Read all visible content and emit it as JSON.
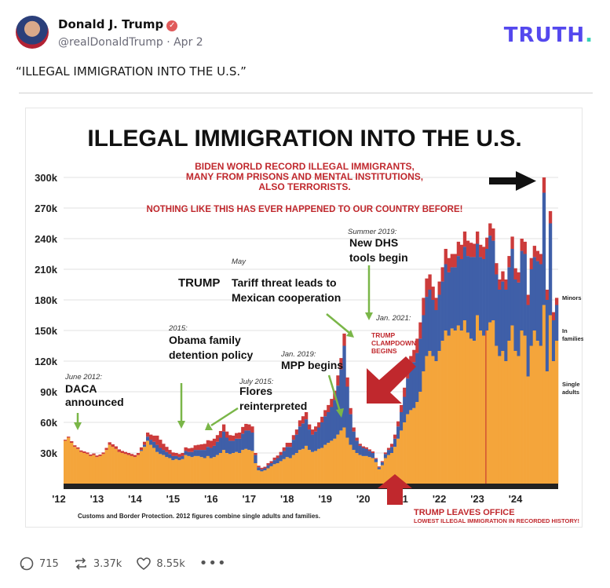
{
  "post": {
    "author_name": "Donald J. Trump",
    "handle_date": "@realDonaldTrump · Apr 2",
    "brand": "TRUTH",
    "text": "“ILLEGAL IMMIGRATION INTO THE U.S.”"
  },
  "actions": {
    "replies": "715",
    "retruths": "3.37k",
    "likes": "8.55k"
  },
  "colors": {
    "single_adults": "#f4a53b",
    "families": "#3f5fa8",
    "minors": "#cc3b3b",
    "annotation_red": "#c0282d",
    "arrow_green": "#7ab648",
    "brand": "#5448ee"
  },
  "chart_data": {
    "type": "bar",
    "stacked": true,
    "title": "ILLEGAL IMMIGRATION INTO THE U.S.",
    "subtitle_lines": [
      "BIDEN WORLD RECORD ILLEGAL IMMIGRANTS,",
      "MANY FROM PRISONS AND MENTAL INSTITUTIONS,",
      "ALSO TERRORISTS."
    ],
    "subtitle2": "NOTHING LIKE THIS HAS EVER HAPPENED TO OUR COUNTRY BEFORE!",
    "ylim": [
      0,
      300000
    ],
    "y_ticks": [
      "30k",
      "60k",
      "90k",
      "120k",
      "150k",
      "180k",
      "210k",
      "240k",
      "270k",
      "300k"
    ],
    "y_tick_values": [
      30000,
      60000,
      90000,
      120000,
      150000,
      180000,
      210000,
      240000,
      270000,
      300000
    ],
    "x_tick_labels": [
      "'12",
      "'13",
      "'14",
      "'15",
      "'16",
      "'17",
      "'18",
      "'19",
      "'20",
      "'21",
      "'22",
      "'23",
      "'24"
    ],
    "legend": [
      "Minors",
      "In families",
      "Single adults"
    ],
    "source_note": "Customs and Border Protection. 2012 figures combine single adults and families.",
    "series_start": "2012-01",
    "series": [
      {
        "name": "Single adults",
        "values": [
          42000,
          45000,
          40000,
          36000,
          34000,
          31000,
          30000,
          29000,
          27000,
          28000,
          26000,
          27000,
          29000,
          33000,
          38000,
          36000,
          34000,
          31000,
          30000,
          29000,
          28000,
          27000,
          26000,
          28000,
          32000,
          36000,
          42000,
          38000,
          35000,
          31000,
          29000,
          28000,
          26000,
          25000,
          23000,
          24000,
          23000,
          24000,
          28000,
          27000,
          26000,
          27000,
          27000,
          26000,
          25000,
          27000,
          25000,
          26000,
          28000,
          30000,
          33000,
          30000,
          29000,
          30000,
          31000,
          30000,
          33000,
          34000,
          33000,
          32000,
          20000,
          13000,
          12000,
          13000,
          15000,
          17000,
          19000,
          20000,
          22000,
          24000,
          26000,
          25000,
          28000,
          30000,
          33000,
          34000,
          37000,
          33000,
          31000,
          32000,
          34000,
          35000,
          38000,
          40000,
          42000,
          44000,
          48000,
          52000,
          55000,
          45000,
          38000,
          33000,
          30000,
          28000,
          27000,
          27000,
          26000,
          25000,
          21000,
          14000,
          18000,
          25000,
          28000,
          30000,
          36000,
          44000,
          52000,
          60000,
          68000,
          72000,
          74000,
          80000,
          90000,
          110000,
          125000,
          130000,
          125000,
          120000,
          130000,
          140000,
          150000,
          145000,
          152000,
          150000,
          155000,
          150000,
          160000,
          148000,
          142000,
          140000,
          165000,
          150000,
          145000,
          150000,
          158000,
          160000,
          135000,
          125000,
          130000,
          120000,
          140000,
          155000,
          130000,
          125000,
          150000,
          145000,
          105000,
          135000,
          150000,
          140000,
          135000,
          175000,
          110000,
          165000,
          120000,
          140000
        ]
      },
      {
        "name": "In families",
        "values": [
          0,
          0,
          0,
          0,
          0,
          0,
          0,
          0,
          0,
          0,
          0,
          0,
          0,
          0,
          0,
          0,
          0,
          0,
          0,
          0,
          0,
          0,
          0,
          0,
          1000,
          2000,
          4000,
          5000,
          6000,
          7000,
          6000,
          5000,
          5000,
          4000,
          4000,
          3000,
          3000,
          3000,
          4000,
          4000,
          5000,
          6000,
          6000,
          7000,
          8000,
          9000,
          10000,
          11000,
          13000,
          15000,
          18000,
          15000,
          13000,
          12000,
          13000,
          14000,
          16000,
          18000,
          19000,
          18000,
          8000,
          3000,
          2000,
          2000,
          3000,
          3000,
          4000,
          5000,
          6000,
          8000,
          10000,
          11000,
          15000,
          18000,
          23000,
          25000,
          26000,
          20000,
          17000,
          19000,
          21000,
          25000,
          28000,
          30000,
          33000,
          38000,
          48000,
          60000,
          80000,
          50000,
          30000,
          18000,
          12000,
          9000,
          8000,
          7000,
          6000,
          5000,
          3000,
          2000,
          3000,
          4000,
          5000,
          6000,
          8000,
          12000,
          18000,
          25000,
          35000,
          40000,
          45000,
          48000,
          52000,
          55000,
          58000,
          60000,
          55000,
          50000,
          55000,
          58000,
          65000,
          62000,
          60000,
          62000,
          68000,
          70000,
          72000,
          75000,
          80000,
          82000,
          70000,
          72000,
          75000,
          80000,
          85000,
          78000,
          70000,
          65000,
          68000,
          70000,
          72000,
          75000,
          70000,
          72000,
          78000,
          80000,
          70000,
          75000,
          72000,
          78000,
          80000,
          110000,
          70000,
          90000,
          40000,
          35000
        ]
      },
      {
        "name": "Minors",
        "values": [
          1000,
          1000,
          1500,
          1500,
          1500,
          1500,
          1500,
          1500,
          1500,
          1500,
          1500,
          1500,
          1500,
          2000,
          2500,
          2500,
          2500,
          2500,
          2000,
          2000,
          2000,
          2000,
          2000,
          2000,
          2500,
          3000,
          4000,
          5000,
          6000,
          9000,
          8000,
          6000,
          5000,
          4000,
          3500,
          3000,
          3000,
          3000,
          3500,
          3500,
          4000,
          4500,
          5000,
          5500,
          6000,
          6500,
          7000,
          7000,
          6500,
          6500,
          7000,
          6000,
          5500,
          5000,
          5500,
          6000,
          6500,
          6500,
          6000,
          6000,
          2000,
          1500,
          1500,
          1500,
          2000,
          2000,
          2500,
          2500,
          3000,
          3500,
          4000,
          4000,
          4500,
          5000,
          6000,
          7000,
          7000,
          5000,
          5000,
          5000,
          5000,
          5500,
          6000,
          7000,
          8000,
          9000,
          10000,
          11000,
          12000,
          9000,
          6000,
          4000,
          3000,
          2000,
          1500,
          1500,
          1500,
          1500,
          1000,
          800,
          1000,
          1500,
          2000,
          3000,
          4000,
          5000,
          7000,
          9000,
          12000,
          13000,
          12000,
          14000,
          16000,
          17000,
          18000,
          15000,
          13000,
          12000,
          13000,
          14000,
          15000,
          14000,
          13000,
          13000,
          14000,
          14000,
          15000,
          15000,
          14000,
          13000,
          12000,
          12000,
          12000,
          11000,
          12000,
          12000,
          11000,
          10000,
          10000,
          10000,
          11000,
          12000,
          11000,
          10000,
          12000,
          12000,
          10000,
          11000,
          11000,
          10000,
          10000,
          15000,
          10000,
          12000,
          8000,
          7000
        ]
      }
    ],
    "annotations": {
      "daca_date": "June 2012:",
      "daca_text": [
        "DACA",
        "announced"
      ],
      "obama_date": "2015:",
      "obama_text": [
        "Obama family",
        "detention policy"
      ],
      "flores_date": "July 2015:",
      "flores_text": [
        "Flores",
        "reinterpreted"
      ],
      "tariff_date": "May",
      "tariff_text_bold": "TRUMP",
      "tariff_text": [
        "Tariff threat leads to",
        "Mexican cooperation"
      ],
      "dhs_date": "Summer 2019:",
      "dhs_text": [
        "New DHS",
        "tools begin"
      ],
      "mpp_date": "Jan. 2019:",
      "mpp_text": "MPP begins",
      "jan2021": "Jan. 2021:",
      "clampdown": [
        "TRUMP",
        "CLAMPDOWN",
        "BEGINS"
      ],
      "leaves_office": "TRUMP LEAVES OFFICE",
      "lowest": "LOWEST ILLEGAL IMMIGRATION IN RECORDED HISTORY!"
    }
  }
}
